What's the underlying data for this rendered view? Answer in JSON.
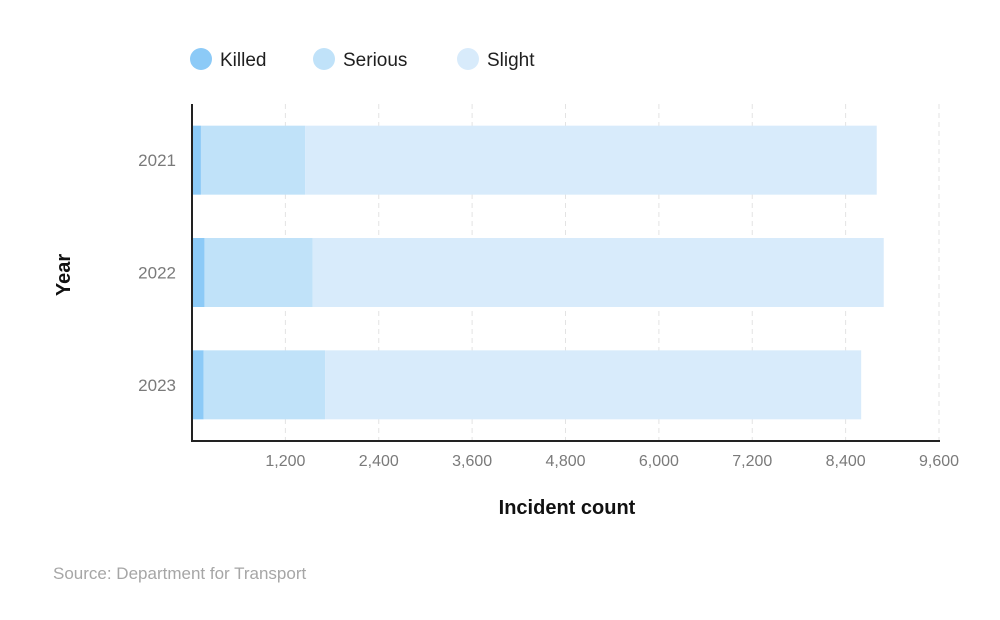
{
  "chart_data": {
    "type": "bar",
    "orientation": "horizontal",
    "stacked": true,
    "categories": [
      "2021",
      "2022",
      "2023"
    ],
    "series": [
      {
        "name": "Killed",
        "color": "#8ccaf7",
        "values": [
          115,
          160,
          150
        ]
      },
      {
        "name": "Serious",
        "color": "#c0e2f9",
        "values": [
          1340,
          1390,
          1560
        ]
      },
      {
        "name": "Slight",
        "color": "#d8ebfb",
        "values": [
          7345,
          7340,
          6890
        ]
      }
    ],
    "xlabel": "Incident count",
    "ylabel": "Year",
    "xlim": [
      0,
      9600
    ],
    "xticks": [
      1200,
      2400,
      3600,
      4800,
      6000,
      7200,
      8400,
      9600
    ],
    "xtick_labels": [
      "1,200",
      "2,400",
      "3,600",
      "4,800",
      "6,000",
      "7,200",
      "8,400",
      "9,600"
    ],
    "grid": "vertical dashed",
    "legend_position": "top-left"
  },
  "source": "Source: Department for Transport"
}
